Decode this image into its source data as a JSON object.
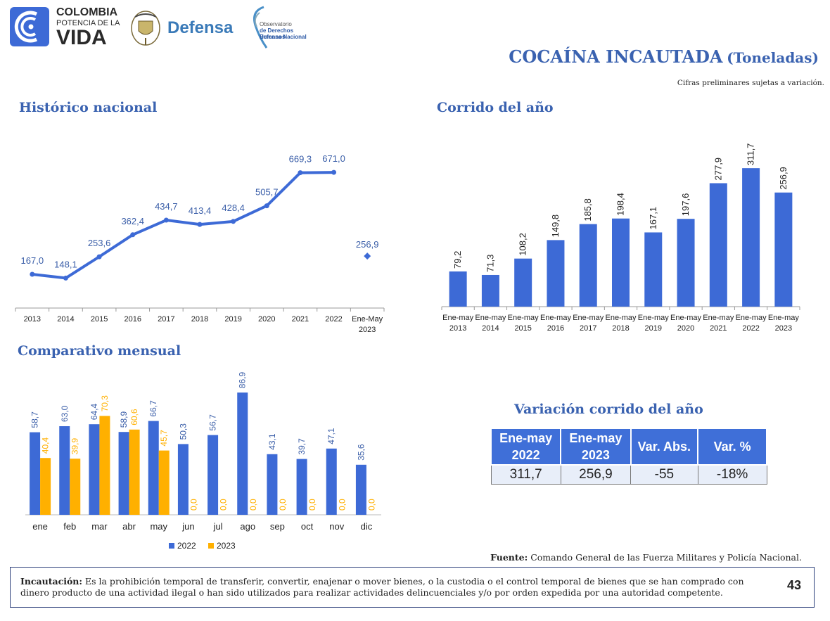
{
  "header": {
    "logo_colombia": [
      "COLOMBIA",
      "POTENCIA DE LA",
      "VIDA"
    ],
    "logo_defensa": "Defensa",
    "logo_observatorio": [
      "Observatorio",
      "de Derechos Humanos",
      "Defensa Nacional"
    ],
    "title_main": "COCAÍNA INCAUTADA",
    "title_units": "(Toneladas)",
    "note": "Cifras preliminares sujetas a variación.",
    "page_number": "43"
  },
  "colors": {
    "blue": "#3d6ad6",
    "orange": "#ffb000",
    "heading": "#3a62b0",
    "table_header": "#3f6fd8"
  },
  "sections": {
    "historico": "Histórico nacional",
    "corrido": "Corrido del año",
    "comparativo": "Comparativo mensual",
    "variacion": "Variación corrido del año"
  },
  "chart_data": [
    {
      "type": "line",
      "title": "Histórico nacional",
      "categories": [
        "2013",
        "2014",
        "2015",
        "2016",
        "2017",
        "2018",
        "2019",
        "2020",
        "2021",
        "2022",
        "Ene-May 2023"
      ],
      "values": [
        167.0,
        148.1,
        253.6,
        362.4,
        434.7,
        413.4,
        428.4,
        505.7,
        669.3,
        671.0,
        256.9
      ],
      "labels": [
        "167,0",
        "148,1",
        "253,6",
        "362,4",
        "434,7",
        "413,4",
        "428,4",
        "505,7",
        "669,3",
        "671,0",
        "256,9"
      ],
      "line_segment_ends_at_index": 9,
      "separate_marker_index": 10,
      "ylim": [
        0,
        800
      ]
    },
    {
      "type": "bar",
      "title": "Corrido del año",
      "categories": [
        "Ene-may 2013",
        "Ene-may 2014",
        "Ene-may 2015",
        "Ene-may 2016",
        "Ene-may 2017",
        "Ene-may 2018",
        "Ene-may 2019",
        "Ene-may 2020",
        "Ene-may 2021",
        "Ene-may 2022",
        "Ene-may 2023"
      ],
      "values": [
        79.2,
        71.3,
        108.2,
        149.8,
        185.8,
        198.4,
        167.1,
        197.6,
        277.9,
        311.7,
        256.9
      ],
      "labels": [
        "79,2",
        "71,3",
        "108,2",
        "149,8",
        "185,8",
        "198,4",
        "167,1",
        "197,6",
        "277,9",
        "311,7",
        "256,9"
      ],
      "ylim": [
        0,
        380
      ]
    },
    {
      "type": "bar",
      "title": "Comparativo mensual",
      "categories": [
        "ene",
        "feb",
        "mar",
        "abr",
        "may",
        "jun",
        "jul",
        "ago",
        "sep",
        "oct",
        "nov",
        "dic"
      ],
      "series": [
        {
          "name": "2022",
          "values": [
            58.7,
            63.0,
            64.4,
            58.9,
            66.7,
            50.3,
            56.7,
            86.9,
            43.1,
            39.7,
            47.1,
            35.6
          ],
          "labels": [
            "58,7",
            "63,0",
            "64,4",
            "58,9",
            "66,7",
            "50,3",
            "56,7",
            "86,9",
            "43,1",
            "39,7",
            "47,1",
            "35,6"
          ]
        },
        {
          "name": "2023",
          "values": [
            40.4,
            39.9,
            70.3,
            60.6,
            45.7,
            0,
            0,
            0,
            0,
            0,
            0,
            0
          ],
          "labels": [
            "40,4",
            "39,9",
            "70,3",
            "60,6",
            "45,7",
            "0,0",
            "0,0",
            "0,0",
            "0,0",
            "0,0",
            "0,0",
            "0,0"
          ]
        }
      ],
      "legend": "bottom",
      "ylim": [
        0,
        100
      ]
    }
  ],
  "variation_table": {
    "headers": [
      "Ene-may 2022",
      "Ene-may 2023",
      "Var. Abs.",
      "Var. %"
    ],
    "row": [
      "311,7",
      "256,9",
      "-55",
      "-18%"
    ]
  },
  "footer": {
    "source_label": "Fuente:",
    "source_text": "Comando General de las Fuerza Militares y Policía Nacional.",
    "definition_label": "Incautación:",
    "definition_text": "Es la prohibición temporal de transferir, convertir, enajenar o mover bienes, o la custodia o el control temporal de bienes que se han comprado con dinero producto de una actividad ilegal o han sido utilizados para realizar actividades delincuenciales y/o por orden expedida por una autoridad competente."
  }
}
